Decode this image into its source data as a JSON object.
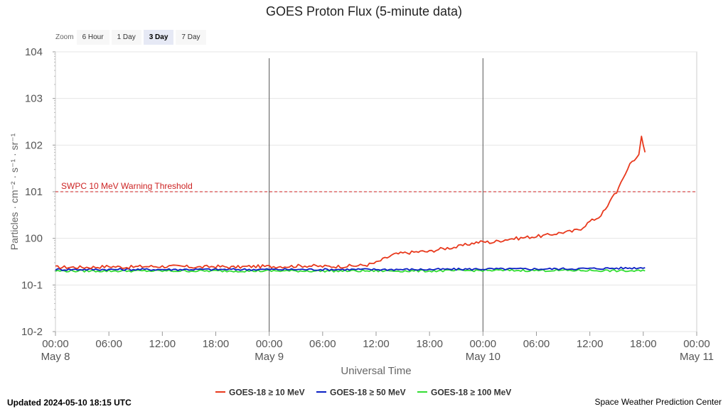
{
  "title": "GOES Proton Flux (5-minute data)",
  "zoom": {
    "label": "Zoom",
    "buttons": [
      "6 Hour",
      "1 Day",
      "3 Day",
      "7 Day"
    ],
    "active": "3 Day"
  },
  "footer": {
    "updated": "Updated 2024-05-10 18:15 UTC",
    "credit": "Space Weather Prediction Center"
  },
  "colors": {
    "s10": "#e8391d",
    "s50": "#0a1fc4",
    "s100": "#33dd33",
    "threshold": "#cc2222",
    "grid": "#e6e6e6"
  },
  "chart_data": {
    "type": "line",
    "xlabel": "Universal Time",
    "ylabel": "Particles · cm⁻² · s⁻¹ · sr⁻¹",
    "y_scale": "log",
    "ylim_exponent": [
      -2,
      4
    ],
    "xlim_hours": [
      0,
      72
    ],
    "x_ticks": [
      {
        "h": 0,
        "label": "00:00",
        "date": "May 8"
      },
      {
        "h": 6,
        "label": "06:00",
        "date": ""
      },
      {
        "h": 12,
        "label": "12:00",
        "date": ""
      },
      {
        "h": 18,
        "label": "18:00",
        "date": ""
      },
      {
        "h": 24,
        "label": "00:00",
        "date": "May 9"
      },
      {
        "h": 30,
        "label": "06:00",
        "date": ""
      },
      {
        "h": 36,
        "label": "12:00",
        "date": ""
      },
      {
        "h": 42,
        "label": "18:00",
        "date": ""
      },
      {
        "h": 48,
        "label": "00:00",
        "date": "May 10"
      },
      {
        "h": 54,
        "label": "06:00",
        "date": ""
      },
      {
        "h": 60,
        "label": "12:00",
        "date": ""
      },
      {
        "h": 66,
        "label": "18:00",
        "date": ""
      },
      {
        "h": 72,
        "label": "00:00",
        "date": "May 11"
      }
    ],
    "y_ticks": [
      {
        "exp": 4,
        "label": "104"
      },
      {
        "exp": 3,
        "label": "103"
      },
      {
        "exp": 2,
        "label": "102"
      },
      {
        "exp": 1,
        "label": "101"
      },
      {
        "exp": 0,
        "label": "100"
      },
      {
        "exp": -1,
        "label": "10-1"
      },
      {
        "exp": -2,
        "label": "10-2"
      }
    ],
    "day_lines_hours": [
      24,
      48
    ],
    "threshold": {
      "value": 10,
      "label": "SWPC 10 MeV Warning Threshold"
    },
    "series": [
      {
        "name": "GOES-18 ≥ 10 MeV",
        "color": "#e8391d",
        "x": [
          0,
          2,
          4,
          6,
          8,
          10,
          12,
          14,
          16,
          18,
          20,
          22,
          24,
          26,
          28,
          30,
          32,
          34,
          35,
          36,
          37,
          38,
          39,
          40,
          41,
          42,
          43,
          44,
          45,
          46,
          47,
          48,
          49,
          50,
          51,
          52,
          53,
          54,
          55,
          56,
          57,
          58,
          59,
          60,
          61,
          62,
          62.5,
          63,
          63.5,
          64,
          64.5,
          65,
          65.5,
          65.8,
          66,
          66.2
        ],
        "y": [
          0.24,
          0.24,
          0.24,
          0.25,
          0.24,
          0.25,
          0.25,
          0.25,
          0.24,
          0.25,
          0.24,
          0.25,
          0.25,
          0.25,
          0.26,
          0.25,
          0.25,
          0.26,
          0.27,
          0.3,
          0.37,
          0.45,
          0.48,
          0.5,
          0.52,
          0.52,
          0.58,
          0.62,
          0.65,
          0.72,
          0.8,
          0.85,
          0.82,
          0.9,
          0.98,
          1.0,
          1.06,
          1.1,
          1.15,
          1.25,
          1.35,
          1.4,
          1.62,
          2.3,
          2.85,
          4.7,
          8.0,
          10.0,
          15.0,
          25.0,
          40.0,
          50.0,
          60.0,
          150.0,
          100.0,
          70.0
        ]
      },
      {
        "name": "GOES-18 ≥ 50 MeV",
        "color": "#0a1fc4",
        "x": [
          0,
          6,
          12,
          18,
          24,
          30,
          36,
          42,
          48,
          54,
          60,
          64,
          66.2
        ],
        "y": [
          0.215,
          0.215,
          0.215,
          0.215,
          0.215,
          0.215,
          0.215,
          0.215,
          0.22,
          0.22,
          0.225,
          0.23,
          0.235
        ]
      },
      {
        "name": "GOES-18 ≥ 100 MeV",
        "color": "#33dd33",
        "x": [
          0,
          6,
          12,
          18,
          24,
          30,
          36,
          42,
          48,
          54,
          60,
          64,
          66.2
        ],
        "y": [
          0.2,
          0.2,
          0.2,
          0.2,
          0.2,
          0.2,
          0.2,
          0.2,
          0.205,
          0.205,
          0.205,
          0.2,
          0.2
        ]
      }
    ],
    "legend_position": "bottom-center",
    "grid": true
  }
}
